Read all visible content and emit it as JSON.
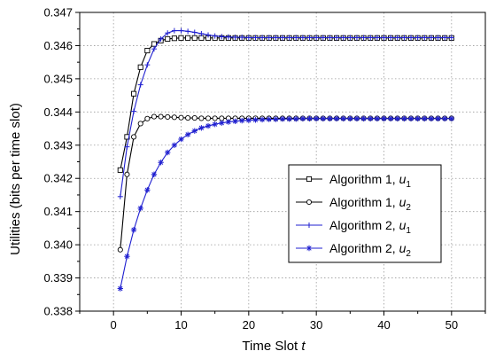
{
  "chart_data": {
    "type": "line",
    "xlabel": "Time Slot",
    "xlabel_var": "t",
    "ylabel": "Utilities (bits per time slot)",
    "xlim": [
      -5,
      55
    ],
    "ylim": [
      0.338,
      0.347
    ],
    "xticks": [
      0,
      10,
      20,
      30,
      40,
      50
    ],
    "yticks": [
      0.338,
      0.339,
      0.34,
      0.341,
      0.342,
      0.343,
      0.344,
      0.345,
      0.346,
      0.347
    ],
    "xtick_labels": [
      "0",
      "10",
      "20",
      "30",
      "40",
      "50"
    ],
    "ytick_labels": [
      "0.338",
      "0.339",
      "0.340",
      "0.341",
      "0.342",
      "0.343",
      "0.344",
      "0.345",
      "0.346",
      "0.347"
    ],
    "grid": true,
    "legend_position": "right",
    "series": [
      {
        "name": "Algorithm 1, ",
        "name_var": "u",
        "name_sub": "1",
        "color": "#000000",
        "marker": "square",
        "x": [
          1,
          2,
          3,
          4,
          5,
          6,
          7,
          8,
          9,
          10,
          11,
          12,
          13,
          14,
          15,
          16,
          17,
          18,
          19,
          20,
          21,
          22,
          23,
          24,
          25,
          26,
          27,
          28,
          29,
          30,
          31,
          32,
          33,
          34,
          35,
          36,
          37,
          38,
          39,
          40,
          41,
          42,
          43,
          44,
          45,
          46,
          47,
          48,
          49,
          50
        ],
        "y": [
          0.34225,
          0.34325,
          0.34455,
          0.34535,
          0.34585,
          0.34605,
          0.34615,
          0.3462,
          0.34622,
          0.34623,
          0.34623,
          0.34623,
          0.34623,
          0.34623,
          0.34623,
          0.34623,
          0.34623,
          0.34623,
          0.34623,
          0.34623,
          0.34623,
          0.34623,
          0.34623,
          0.34623,
          0.34623,
          0.34623,
          0.34623,
          0.34623,
          0.34623,
          0.34623,
          0.34623,
          0.34623,
          0.34623,
          0.34623,
          0.34623,
          0.34623,
          0.34623,
          0.34623,
          0.34623,
          0.34623,
          0.34623,
          0.34623,
          0.34623,
          0.34623,
          0.34623,
          0.34623,
          0.34623,
          0.34623,
          0.34623,
          0.34623
        ]
      },
      {
        "name": "Algorithm 1, ",
        "name_var": "u",
        "name_sub": "2",
        "color": "#000000",
        "marker": "circle",
        "x": [
          1,
          2,
          3,
          4,
          5,
          6,
          7,
          8,
          9,
          10,
          11,
          12,
          13,
          14,
          15,
          16,
          17,
          18,
          19,
          20,
          21,
          22,
          23,
          24,
          25,
          26,
          27,
          28,
          29,
          30,
          31,
          32,
          33,
          34,
          35,
          36,
          37,
          38,
          39,
          40,
          41,
          42,
          43,
          44,
          45,
          46,
          47,
          48,
          49,
          50
        ],
        "y": [
          0.33985,
          0.34212,
          0.34325,
          0.34365,
          0.3438,
          0.34386,
          0.34386,
          0.34385,
          0.34384,
          0.34383,
          0.34382,
          0.34382,
          0.34381,
          0.34381,
          0.34381,
          0.34381,
          0.34381,
          0.34381,
          0.34381,
          0.34381,
          0.34381,
          0.34381,
          0.34381,
          0.34381,
          0.34381,
          0.34381,
          0.34381,
          0.34381,
          0.34381,
          0.34381,
          0.34381,
          0.34381,
          0.34381,
          0.34381,
          0.34381,
          0.34381,
          0.34381,
          0.34381,
          0.34381,
          0.34381,
          0.34381,
          0.34381,
          0.34381,
          0.34381,
          0.34381,
          0.34381,
          0.34381,
          0.34381,
          0.34381,
          0.34381
        ]
      },
      {
        "name": "Algorithm 2, ",
        "name_var": "u",
        "name_sub": "1",
        "color": "#1f1fd0",
        "marker": "plus",
        "x": [
          1,
          2,
          3,
          4,
          5,
          6,
          7,
          8,
          9,
          10,
          11,
          12,
          13,
          14,
          15,
          16,
          17,
          18,
          19,
          20,
          21,
          22,
          23,
          24,
          25,
          26,
          27,
          28,
          29,
          30,
          31,
          32,
          33,
          34,
          35,
          36,
          37,
          38,
          39,
          40,
          41,
          42,
          43,
          44,
          45,
          46,
          47,
          48,
          49,
          50
        ],
        "y": [
          0.34145,
          0.34295,
          0.34402,
          0.34482,
          0.34542,
          0.3459,
          0.3462,
          0.34638,
          0.34645,
          0.34645,
          0.34643,
          0.3464,
          0.34636,
          0.34632,
          0.34629,
          0.34627,
          0.34626,
          0.34625,
          0.34625,
          0.34624,
          0.34624,
          0.34624,
          0.34624,
          0.34624,
          0.34624,
          0.34624,
          0.34624,
          0.34624,
          0.34624,
          0.34624,
          0.34624,
          0.34624,
          0.34624,
          0.34624,
          0.34624,
          0.34624,
          0.34624,
          0.34624,
          0.34624,
          0.34624,
          0.34624,
          0.34624,
          0.34624,
          0.34624,
          0.34624,
          0.34624,
          0.34624,
          0.34624,
          0.34624,
          0.34624
        ]
      },
      {
        "name": "Algorithm 2, ",
        "name_var": "u",
        "name_sub": "2",
        "color": "#1f1fd0",
        "marker": "star",
        "x": [
          1,
          2,
          3,
          4,
          5,
          6,
          7,
          8,
          9,
          10,
          11,
          12,
          13,
          14,
          15,
          16,
          17,
          18,
          19,
          20,
          21,
          22,
          23,
          24,
          25,
          26,
          27,
          28,
          29,
          30,
          31,
          32,
          33,
          34,
          35,
          36,
          37,
          38,
          39,
          40,
          41,
          42,
          43,
          44,
          45,
          46,
          47,
          48,
          49,
          50
        ],
        "y": [
          0.33868,
          0.33965,
          0.34045,
          0.3411,
          0.34165,
          0.34212,
          0.34248,
          0.34278,
          0.343,
          0.34318,
          0.34332,
          0.34343,
          0.34352,
          0.34358,
          0.34363,
          0.34367,
          0.3437,
          0.34372,
          0.34374,
          0.34375,
          0.34376,
          0.34377,
          0.34378,
          0.34378,
          0.34379,
          0.34379,
          0.34379,
          0.3438,
          0.3438,
          0.3438,
          0.3438,
          0.3438,
          0.3438,
          0.3438,
          0.3438,
          0.3438,
          0.3438,
          0.3438,
          0.3438,
          0.3438,
          0.3438,
          0.3438,
          0.3438,
          0.3438,
          0.3438,
          0.3438,
          0.3438,
          0.3438,
          0.3438,
          0.3438
        ]
      }
    ]
  }
}
